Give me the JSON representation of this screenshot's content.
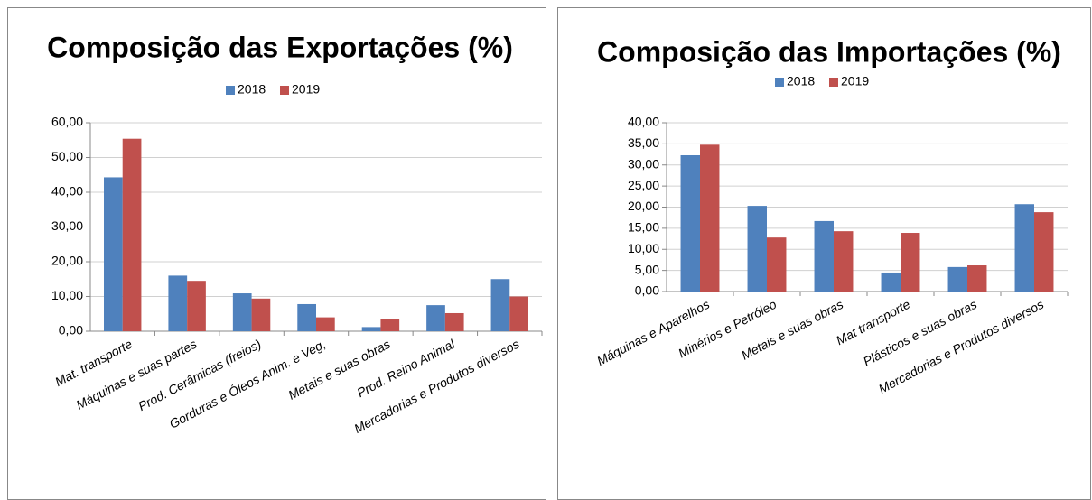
{
  "chart_data": [
    {
      "type": "bar",
      "title": "Composição das Exportações (%)",
      "categories": [
        "Mat. transporte",
        "Máquinas e suas partes",
        "Prod. Cerâmicas (freios)",
        "Gorduras e Óleos Anim. e Veg,",
        "Metais e suas obras",
        "Prod. Reino Animal",
        "Mercadorias e Produtos diversos"
      ],
      "series": [
        {
          "name": "2018",
          "color": "#4f81bd",
          "values": [
            44.3,
            16.0,
            10.9,
            7.8,
            1.2,
            7.5,
            15.0
          ]
        },
        {
          "name": "2019",
          "color": "#c0504d",
          "values": [
            55.4,
            14.5,
            9.4,
            4.0,
            3.6,
            5.2,
            10.0
          ]
        }
      ],
      "ylim": [
        0,
        60
      ],
      "yticks": [
        {
          "value": 0,
          "label": "0,00"
        },
        {
          "value": 10,
          "label": "10,00"
        },
        {
          "value": 20,
          "label": "20,00"
        },
        {
          "value": 30,
          "label": "30,00"
        },
        {
          "value": 40,
          "label": "40,00"
        },
        {
          "value": 50,
          "label": "50,00"
        },
        {
          "value": 60,
          "label": "60,00"
        }
      ],
      "grid": true,
      "legend": "top"
    },
    {
      "type": "bar",
      "title": "Composição das Importações (%)",
      "categories": [
        "Máquinas e Aparelhos",
        "Minérios e Petróleo",
        "Metais e suas obras",
        "Mat transporte",
        "Plásticos e suas obras",
        "Mercadorias e Produtos diversos"
      ],
      "series": [
        {
          "name": "2018",
          "color": "#4f81bd",
          "values": [
            32.3,
            20.3,
            16.7,
            4.5,
            5.8,
            20.7
          ]
        },
        {
          "name": "2019",
          "color": "#c0504d",
          "values": [
            34.8,
            12.8,
            14.3,
            13.9,
            6.2,
            18.8
          ]
        }
      ],
      "ylim": [
        0,
        40
      ],
      "yticks": [
        {
          "value": 0,
          "label": "0,00"
        },
        {
          "value": 5,
          "label": "5,00"
        },
        {
          "value": 10,
          "label": "10,00"
        },
        {
          "value": 15,
          "label": "15,00"
        },
        {
          "value": 20,
          "label": "20,00"
        },
        {
          "value": 25,
          "label": "25,00"
        },
        {
          "value": 30,
          "label": "30,00"
        },
        {
          "value": 35,
          "label": "35,00"
        },
        {
          "value": 40,
          "label": "40,00"
        }
      ],
      "grid": true,
      "legend": "top"
    }
  ]
}
